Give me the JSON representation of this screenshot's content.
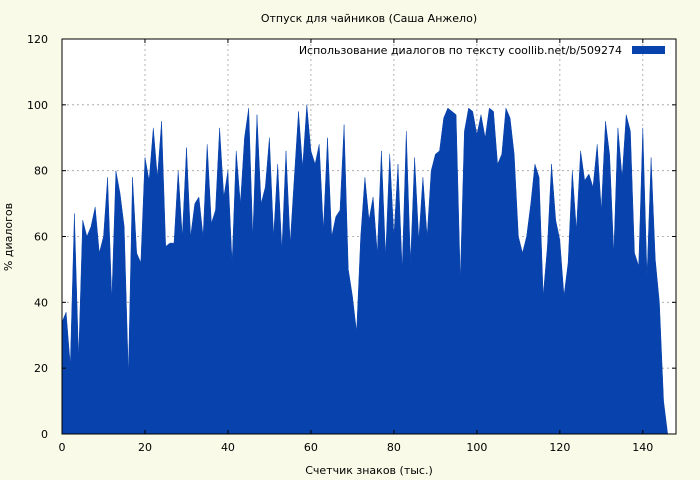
{
  "colors": {
    "background": "#fafae8",
    "plot_background": "#ffffff",
    "series": "#0842ad",
    "grid": "#a0a0a0",
    "axis": "#000000"
  },
  "chart_data": {
    "type": "area",
    "title": "Отпуск для чайников (Саша Анжело)",
    "xlabel": "Счетчик знаков (тыс.)",
    "ylabel": "% диалогов",
    "xlim": [
      0,
      148
    ],
    "ylim": [
      0,
      120
    ],
    "x_ticks": [
      0,
      20,
      40,
      60,
      80,
      100,
      120,
      140
    ],
    "y_ticks": [
      0,
      20,
      40,
      60,
      80,
      100,
      120
    ],
    "grid": true,
    "legend_position": "top-right",
    "series": [
      {
        "name": "Использование диалогов по тексту  coollib.net/b/509274",
        "x": [
          0,
          1,
          2,
          3,
          4,
          5,
          6,
          7,
          8,
          9,
          10,
          11,
          12,
          13,
          14,
          15,
          16,
          17,
          18,
          19,
          20,
          21,
          22,
          23,
          24,
          25,
          26,
          27,
          28,
          29,
          30,
          31,
          32,
          33,
          34,
          35,
          36,
          37,
          38,
          39,
          40,
          41,
          42,
          43,
          44,
          45,
          46,
          47,
          48,
          49,
          50,
          51,
          52,
          53,
          54,
          55,
          56,
          57,
          58,
          59,
          60,
          61,
          62,
          63,
          64,
          65,
          66,
          67,
          68,
          69,
          70,
          71,
          72,
          73,
          74,
          75,
          76,
          77,
          78,
          79,
          80,
          81,
          82,
          83,
          84,
          85,
          86,
          87,
          88,
          89,
          90,
          91,
          92,
          93,
          94,
          95,
          96,
          97,
          98,
          99,
          100,
          101,
          102,
          103,
          104,
          105,
          106,
          107,
          108,
          109,
          110,
          111,
          112,
          113,
          114,
          115,
          116,
          117,
          118,
          119,
          120,
          121,
          122,
          123,
          124,
          125,
          126,
          127,
          128,
          129,
          130,
          131,
          132,
          133,
          134,
          135,
          136,
          137,
          138,
          139,
          140,
          141,
          142,
          143,
          144,
          145,
          146,
          147,
          148
        ],
        "values": [
          34,
          37,
          21,
          67,
          23,
          65,
          60,
          63,
          69,
          55,
          60,
          78,
          41,
          80,
          73,
          63,
          18,
          78,
          55,
          52,
          84,
          77,
          93,
          78,
          95,
          57,
          58,
          58,
          80,
          60,
          87,
          60,
          70,
          72,
          60,
          88,
          64,
          68,
          93,
          72,
          80,
          52,
          86,
          70,
          90,
          99,
          60,
          97,
          70,
          75,
          90,
          60,
          82,
          56,
          86,
          58,
          78,
          98,
          81,
          100,
          86,
          82,
          88,
          62,
          90,
          60,
          66,
          68,
          94,
          50,
          42,
          31,
          60,
          78,
          65,
          72,
          55,
          86,
          54,
          85,
          60,
          82,
          50,
          92,
          52,
          84,
          59,
          78,
          60,
          80,
          85,
          86,
          96,
          99,
          98,
          97,
          47,
          92,
          99,
          98,
          91,
          97,
          90,
          99,
          98,
          82,
          85,
          99,
          96,
          85,
          60,
          55,
          60,
          70,
          82,
          78,
          42,
          57,
          82,
          65,
          59,
          42,
          52,
          80,
          62,
          86,
          77,
          79,
          75,
          88,
          68,
          95,
          85,
          55,
          93,
          78,
          97,
          92,
          55,
          51,
          93,
          48,
          84,
          53,
          40,
          10,
          0,
          0,
          0
        ]
      }
    ]
  }
}
